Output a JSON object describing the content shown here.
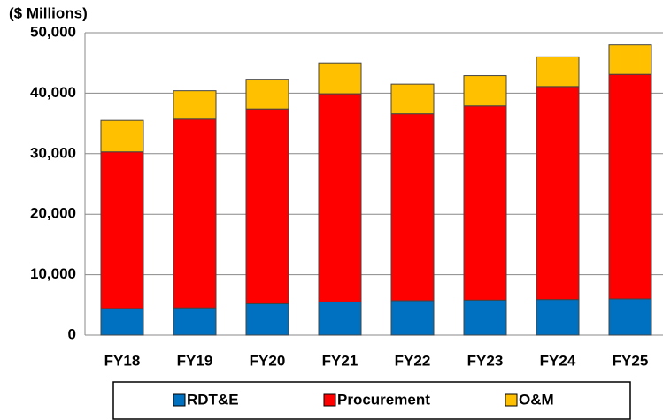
{
  "chart_data": {
    "type": "stacked_bar",
    "y_label": "($ Millions)",
    "categories": [
      "FY18",
      "FY19",
      "FY20",
      "FY21",
      "FY22",
      "FY23",
      "FY24",
      "FY25"
    ],
    "series": [
      {
        "name": "RDT&E",
        "color": "#0070c0",
        "values": [
          4400,
          4500,
          5200,
          5500,
          5700,
          5800,
          5900,
          6000
        ]
      },
      {
        "name": "Procurement",
        "color": "#ff0000",
        "values": [
          25900,
          31200,
          32200,
          34400,
          30900,
          32100,
          35200,
          37100
        ]
      },
      {
        "name": "O&M",
        "color": "#ffc000",
        "values": [
          5200,
          4700,
          4900,
          5100,
          4900,
          5000,
          4900,
          4900
        ]
      }
    ],
    "ylim": [
      0,
      50000
    ],
    "yticks": [
      0,
      {
        "value": 10000,
        "label": "10,000"
      },
      {
        "value": 20000,
        "label": "20,000"
      },
      {
        "value": 30000,
        "label": "30,000"
      },
      {
        "value": 40000,
        "label": "40,000"
      },
      {
        "value": 50000,
        "label": "50,000"
      }
    ],
    "grid": true,
    "legend": "bottom"
  }
}
